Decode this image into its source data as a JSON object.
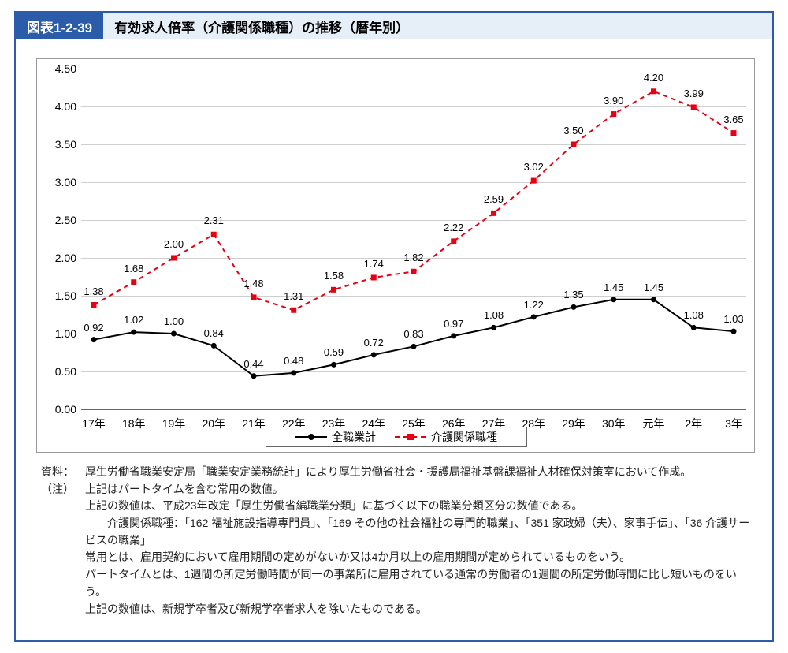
{
  "header": {
    "figure_label": "図表1-2-39",
    "title": "有効求人倍率（介護関係職種）の推移（暦年別）"
  },
  "chart": {
    "type": "line",
    "background_color": "#ffffff",
    "grid_color": "#cfcfcf",
    "ylim": [
      0.0,
      4.5
    ],
    "ytick_step": 0.5,
    "yticks": [
      "0.00",
      "0.50",
      "1.00",
      "1.50",
      "2.00",
      "2.50",
      "3.00",
      "3.50",
      "4.00",
      "4.50"
    ],
    "categories": [
      "17年",
      "18年",
      "19年",
      "20年",
      "21年",
      "22年",
      "23年",
      "24年",
      "25年",
      "26年",
      "27年",
      "28年",
      "29年",
      "30年",
      "元年",
      "2年",
      "3年"
    ],
    "series": [
      {
        "name": "全職業計",
        "color": "#000000",
        "line_width": 2,
        "dash": "solid",
        "marker": "circle",
        "marker_size": 7,
        "values": [
          0.92,
          1.02,
          1.0,
          0.84,
          0.44,
          0.48,
          0.59,
          0.72,
          0.83,
          0.97,
          1.08,
          1.22,
          1.35,
          1.45,
          1.45,
          1.08,
          1.03
        ],
        "label_offset_y": -8
      },
      {
        "name": "介護関係職種",
        "color": "#e60012",
        "line_width": 2,
        "dash": "6,5",
        "marker": "square",
        "marker_size": 7,
        "values": [
          1.38,
          1.68,
          2.0,
          2.31,
          1.48,
          1.31,
          1.58,
          1.74,
          1.82,
          2.22,
          2.59,
          3.02,
          3.5,
          3.9,
          4.2,
          3.99,
          3.65
        ],
        "label_offset_y": -10
      }
    ],
    "legend_labels": [
      "全職業計",
      "介護関係職種"
    ],
    "label_fontsize": 13,
    "tick_fontsize": 14
  },
  "notes": {
    "source_label": "資料：",
    "source_text": "厚生労働省職業安定局「職業安定業務統計」により厚生労働省社会・援護局福祉基盤課福祉人材確保対策室において作成。",
    "note_label": "（注）",
    "lines": [
      "上記はパートタイムを含む常用の数値。",
      "上記の数値は、平成23年改定「厚生労働省編職業分類」に基づく以下の職業分類区分の数値である。",
      "　　介護関係職種：「162 福祉施設指導専門員」、「169 その他の社会福祉の専門的職業」、「351 家政婦（夫）、家事手伝」、「36 介護サービスの職業」",
      "常用とは、雇用契約において雇用期間の定めがないか又は4か月以上の雇用期間が定められているものをいう。",
      "パートタイムとは、1週間の所定労働時間が同一の事業所に雇用されている通常の労働者の1週間の所定労働時間に比し短いものをいう。",
      "上記の数値は、新規学卒者及び新規学卒者求人を除いたものである。"
    ]
  },
  "colors": {
    "header_bg": "#2a5caa",
    "header_sub_bg": "#e6eef8"
  }
}
